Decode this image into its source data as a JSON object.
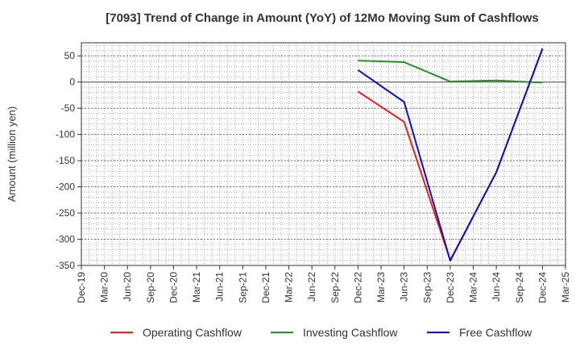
{
  "chart_data": {
    "type": "line",
    "title": "[7093]  Trend of Change in Amount (YoY) of 12Mo Moving Sum of Cashflows",
    "xlabel": "",
    "ylabel": "Amount (million yen)",
    "ylim": [
      -350,
      75
    ],
    "yticks": [
      50,
      0,
      -50,
      -100,
      -150,
      -200,
      -250,
      -300,
      -350
    ],
    "categories": [
      "Dec-19",
      "Mar-20",
      "Jun-20",
      "Sep-20",
      "Dec-20",
      "Mar-21",
      "Jun-21",
      "Sep-21",
      "Dec-21",
      "Mar-22",
      "Jun-22",
      "Sep-22",
      "Dec-22",
      "Mar-23",
      "Jun-23",
      "Sep-23",
      "Dec-23",
      "Mar-24",
      "Jun-24",
      "Sep-24",
      "Dec-24",
      "Mar-25"
    ],
    "series": [
      {
        "name": "Operating Cashflow",
        "color": "#e8211d",
        "x": [
          "Dec-22",
          "Jun-23",
          "Dec-23",
          "Jun-24",
          "Dec-24"
        ],
        "values": [
          -18,
          -76,
          -340,
          -172,
          63
        ]
      },
      {
        "name": "Investing Cashflow",
        "color": "#2e8b2e",
        "x": [
          "Dec-22",
          "Jun-23",
          "Dec-23",
          "Jun-24",
          "Dec-24"
        ],
        "values": [
          41,
          38,
          1,
          3,
          -1
        ]
      },
      {
        "name": "Free Cashflow",
        "color": "#1010c8",
        "x": [
          "Dec-22",
          "Jun-23",
          "Dec-23",
          "Jun-24",
          "Dec-24"
        ],
        "values": [
          23,
          -38,
          -341,
          -172,
          64
        ]
      }
    ],
    "legend_position": "bottom",
    "grid": true
  }
}
